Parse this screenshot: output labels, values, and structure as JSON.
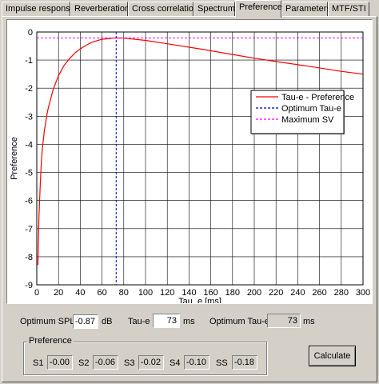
{
  "tabs": [
    {
      "label": "Impulse response",
      "active": false
    },
    {
      "label": "Reverberation",
      "active": false
    },
    {
      "label": "Cross correlation",
      "active": false
    },
    {
      "label": "Spectrum",
      "active": false
    },
    {
      "label": "Preference",
      "active": true
    },
    {
      "label": "Parameters",
      "active": false
    },
    {
      "label": "MTF/STI",
      "active": false
    }
  ],
  "chart_data": {
    "type": "line",
    "xlabel": "Tau_e [ms]",
    "ylabel": "Preference",
    "xlim": [
      0,
      300
    ],
    "ylim": [
      -9,
      0
    ],
    "x_ticks": [
      "0",
      "20",
      "40",
      "60",
      "80",
      "100",
      "120",
      "140",
      "160",
      "180",
      "200",
      "220",
      "240",
      "260",
      "280",
      "300"
    ],
    "y_ticks": [
      "0",
      "-1",
      "-2",
      "-3",
      "-4",
      "-5",
      "-6",
      "-7",
      "-8",
      "-9"
    ],
    "grid": true,
    "legend_position": "right",
    "series": [
      {
        "name": "Tau-e - Preference",
        "color": "#ff0000",
        "style": "solid",
        "points": [
          [
            1,
            -8.3
          ],
          [
            2,
            -6.6
          ],
          [
            3,
            -5.6
          ],
          [
            4,
            -4.8
          ],
          [
            5,
            -4.2
          ],
          [
            7,
            -3.5
          ],
          [
            10,
            -2.8
          ],
          [
            15,
            -2.05
          ],
          [
            20,
            -1.55
          ],
          [
            25,
            -1.2
          ],
          [
            30,
            -0.95
          ],
          [
            35,
            -0.75
          ],
          [
            40,
            -0.6
          ],
          [
            45,
            -0.48
          ],
          [
            50,
            -0.38
          ],
          [
            55,
            -0.31
          ],
          [
            60,
            -0.26
          ],
          [
            65,
            -0.24
          ],
          [
            70,
            -0.22
          ],
          [
            73,
            -0.21
          ],
          [
            80,
            -0.22
          ],
          [
            100,
            -0.3
          ],
          [
            120,
            -0.42
          ],
          [
            150,
            -0.6
          ],
          [
            180,
            -0.8
          ],
          [
            200,
            -0.93
          ],
          [
            220,
            -1.05
          ],
          [
            250,
            -1.22
          ],
          [
            280,
            -1.4
          ],
          [
            300,
            -1.5
          ]
        ]
      },
      {
        "name": "Optimum Tau-e",
        "color": "#0000cc",
        "style": "dashed",
        "vertical_x": 73
      },
      {
        "name": "Maximum SV",
        "color": "#ff00ff",
        "style": "dashed",
        "horizontal_y": -0.21
      }
    ]
  },
  "fields": {
    "optimum_spl_label": "Optimum SPL",
    "optimum_spl_value": "-0.87",
    "optimum_spl_unit": "dB",
    "tau_e_label": "Tau-e",
    "tau_e_value": "73",
    "tau_e_unit": "ms",
    "optimum_tau_e_label": "Optimum Tau-e",
    "optimum_tau_e_value": "73",
    "optimum_tau_e_unit": "ms"
  },
  "preference_group": {
    "title": "Preference",
    "items": [
      {
        "label": "S1",
        "value": "-0.00"
      },
      {
        "label": "S2",
        "value": "-0.06"
      },
      {
        "label": "S3",
        "value": "-0.02"
      },
      {
        "label": "S4",
        "value": "-0.10"
      },
      {
        "label": "SS",
        "value": "-0.18"
      }
    ]
  },
  "buttons": {
    "calculate": "Calculate"
  }
}
